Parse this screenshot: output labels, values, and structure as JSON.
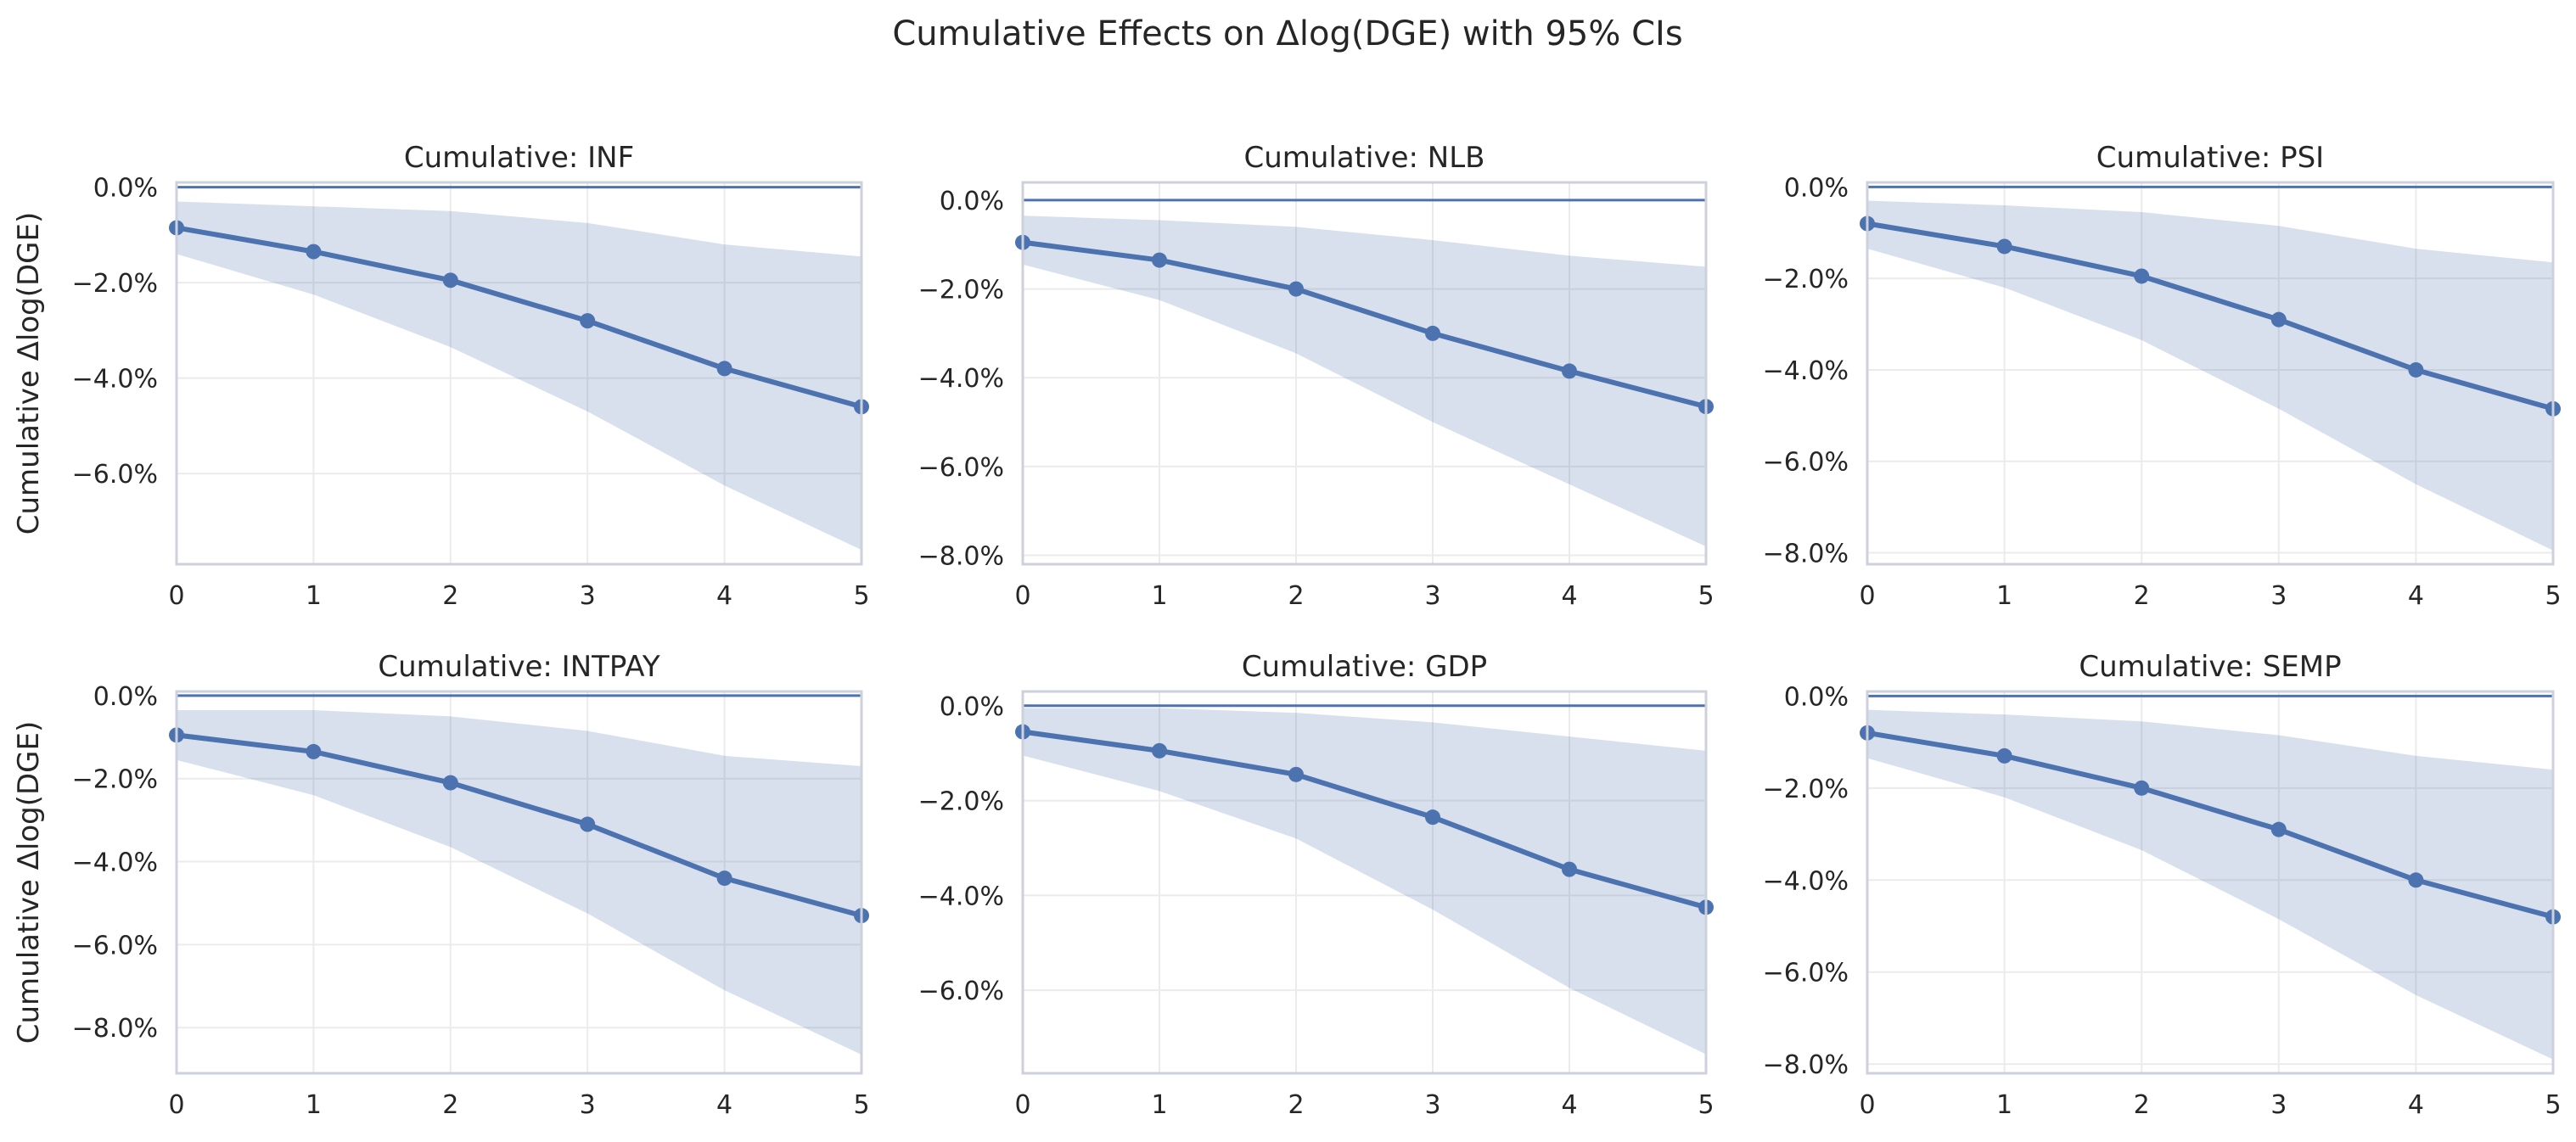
{
  "figure": {
    "title": "Cumulative Effects on Δlog(DGE) with 95% CIs"
  },
  "colors": {
    "line": "#4c72b0",
    "band": "#4c72b0",
    "frame": "#cdd1db",
    "grid": "#ebebeb",
    "text": "#262626"
  },
  "chart_data": [
    {
      "type": "line",
      "title": "Cumulative: INF",
      "xlabel": "",
      "ylabel": "Cumulative Δlog(DGE)",
      "x": [
        0,
        1,
        2,
        3,
        4,
        5
      ],
      "values": [
        -0.85,
        -1.35,
        -1.95,
        -2.8,
        -3.8,
        -4.6
      ],
      "ci_lower": [
        -1.4,
        -2.25,
        -3.35,
        -4.7,
        -6.25,
        -7.6
      ],
      "ci_upper": [
        -0.3,
        -0.4,
        -0.5,
        -0.75,
        -1.2,
        -1.45
      ],
      "ylim": [
        -7.9,
        0.1
      ],
      "yticks": [
        0,
        -2,
        -4,
        -6
      ],
      "ytick_labels": [
        "0.0%",
        "−2.0%",
        "−4.0%",
        "−6.0%"
      ],
      "xticks": [
        "0",
        "1",
        "2",
        "3",
        "4",
        "5"
      ],
      "reference_line": 0
    },
    {
      "type": "line",
      "title": "Cumulative: NLB",
      "xlabel": "",
      "ylabel": "",
      "x": [
        0,
        1,
        2,
        3,
        4,
        5
      ],
      "values": [
        -0.95,
        -1.35,
        -2.0,
        -3.0,
        -3.85,
        -4.65
      ],
      "ci_lower": [
        -1.45,
        -2.25,
        -3.45,
        -5.0,
        -6.4,
        -7.8
      ],
      "ci_upper": [
        -0.35,
        -0.45,
        -0.6,
        -0.9,
        -1.25,
        -1.5
      ],
      "ylim": [
        -8.2,
        0.4
      ],
      "yticks": [
        0,
        -2,
        -4,
        -6,
        -8
      ],
      "ytick_labels": [
        "0.0%",
        "−2.0%",
        "−4.0%",
        "−6.0%",
        "−8.0%"
      ],
      "xticks": [
        "0",
        "1",
        "2",
        "3",
        "4",
        "5"
      ],
      "reference_line": 0
    },
    {
      "type": "line",
      "title": "Cumulative: PSI",
      "xlabel": "",
      "ylabel": "",
      "x": [
        0,
        1,
        2,
        3,
        4,
        5
      ],
      "values": [
        -0.8,
        -1.3,
        -1.95,
        -2.9,
        -4.0,
        -4.85
      ],
      "ci_lower": [
        -1.35,
        -2.2,
        -3.35,
        -4.85,
        -6.5,
        -7.95
      ],
      "ci_upper": [
        -0.3,
        -0.4,
        -0.55,
        -0.85,
        -1.35,
        -1.65
      ],
      "ylim": [
        -8.25,
        0.1
      ],
      "yticks": [
        0,
        -2,
        -4,
        -6,
        -8
      ],
      "ytick_labels": [
        "0.0%",
        "−2.0%",
        "−4.0%",
        "−6.0%",
        "−8.0%"
      ],
      "xticks": [
        "0",
        "1",
        "2",
        "3",
        "4",
        "5"
      ],
      "reference_line": 0
    },
    {
      "type": "line",
      "title": "Cumulative: INTPAY",
      "xlabel": "",
      "ylabel": "Cumulative Δlog(DGE)",
      "x": [
        0,
        1,
        2,
        3,
        4,
        5
      ],
      "values": [
        -0.95,
        -1.35,
        -2.1,
        -3.1,
        -4.4,
        -5.3
      ],
      "ci_lower": [
        -1.55,
        -2.4,
        -3.65,
        -5.25,
        -7.1,
        -8.65
      ],
      "ci_upper": [
        -0.35,
        -0.35,
        -0.5,
        -0.85,
        -1.45,
        -1.7
      ],
      "ylim": [
        -9.1,
        0.1
      ],
      "yticks": [
        0,
        -2,
        -4,
        -6,
        -8
      ],
      "ytick_labels": [
        "0.0%",
        "−2.0%",
        "−4.0%",
        "−6.0%",
        "−8.0%"
      ],
      "xticks": [
        "0",
        "1",
        "2",
        "3",
        "4",
        "5"
      ],
      "reference_line": 0
    },
    {
      "type": "line",
      "title": "Cumulative: GDP",
      "xlabel": "",
      "ylabel": "",
      "x": [
        0,
        1,
        2,
        3,
        4,
        5
      ],
      "values": [
        -0.55,
        -0.95,
        -1.45,
        -2.35,
        -3.45,
        -4.25
      ],
      "ci_lower": [
        -1.05,
        -1.8,
        -2.8,
        -4.3,
        -5.95,
        -7.35
      ],
      "ci_upper": [
        -0.05,
        -0.05,
        -0.15,
        -0.35,
        -0.65,
        -0.95
      ],
      "ylim": [
        -7.75,
        0.3
      ],
      "yticks": [
        0,
        -2,
        -4,
        -6
      ],
      "ytick_labels": [
        "0.0%",
        "−2.0%",
        "−4.0%",
        "−6.0%"
      ],
      "xticks": [
        "0",
        "1",
        "2",
        "3",
        "4",
        "5"
      ],
      "reference_line": 0
    },
    {
      "type": "line",
      "title": "Cumulative: SEMP",
      "xlabel": "",
      "ylabel": "",
      "x": [
        0,
        1,
        2,
        3,
        4,
        5
      ],
      "values": [
        -0.8,
        -1.3,
        -2.0,
        -2.9,
        -4.0,
        -4.8
      ],
      "ci_lower": [
        -1.35,
        -2.2,
        -3.35,
        -4.85,
        -6.5,
        -7.9
      ],
      "ci_upper": [
        -0.3,
        -0.4,
        -0.55,
        -0.85,
        -1.3,
        -1.6
      ],
      "ylim": [
        -8.2,
        0.1
      ],
      "yticks": [
        0,
        -2,
        -4,
        -6,
        -8
      ],
      "ytick_labels": [
        "0.0%",
        "−2.0%",
        "−4.0%",
        "−6.0%",
        "−8.0%"
      ],
      "xticks": [
        "0",
        "1",
        "2",
        "3",
        "4",
        "5"
      ],
      "reference_line": 0
    }
  ]
}
